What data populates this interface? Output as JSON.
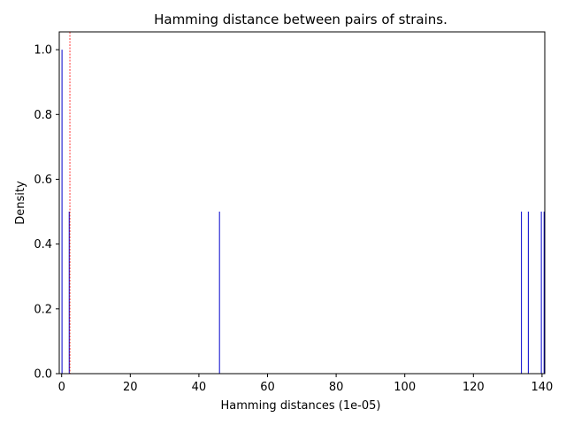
{
  "chart_data": {
    "type": "bar",
    "title": "Hamming distance between pairs of strains.",
    "xlabel": "Hamming distances (1e-05)",
    "ylabel": "Density",
    "xlim": [
      -0.7,
      140.8
    ],
    "ylim": [
      0,
      1.055
    ],
    "xticks": [
      0,
      20,
      40,
      60,
      80,
      100,
      120,
      140
    ],
    "yticks": [
      0.0,
      0.2,
      0.4,
      0.6,
      0.8,
      1.0
    ],
    "xtick_labels": [
      "0",
      "20",
      "40",
      "60",
      "80",
      "100",
      "120",
      "140"
    ],
    "ytick_labels": [
      "0.0",
      "0.2",
      "0.4",
      "0.6",
      "0.8",
      "1.0"
    ],
    "bar_color": "#0000cc",
    "bars": [
      {
        "x": 0.1,
        "value": 1.0
      },
      {
        "x": 2.2,
        "value": 0.5
      },
      {
        "x": 46.0,
        "value": 0.5
      },
      {
        "x": 134.0,
        "value": 0.5
      },
      {
        "x": 136.0,
        "value": 0.5
      },
      {
        "x": 139.8,
        "value": 0.5
      },
      {
        "x": 140.6,
        "value": 0.5
      }
    ],
    "reference_line": {
      "x": 2.4,
      "color": "#ff0000",
      "style": "dashed"
    },
    "grid": false,
    "legend": "none"
  }
}
